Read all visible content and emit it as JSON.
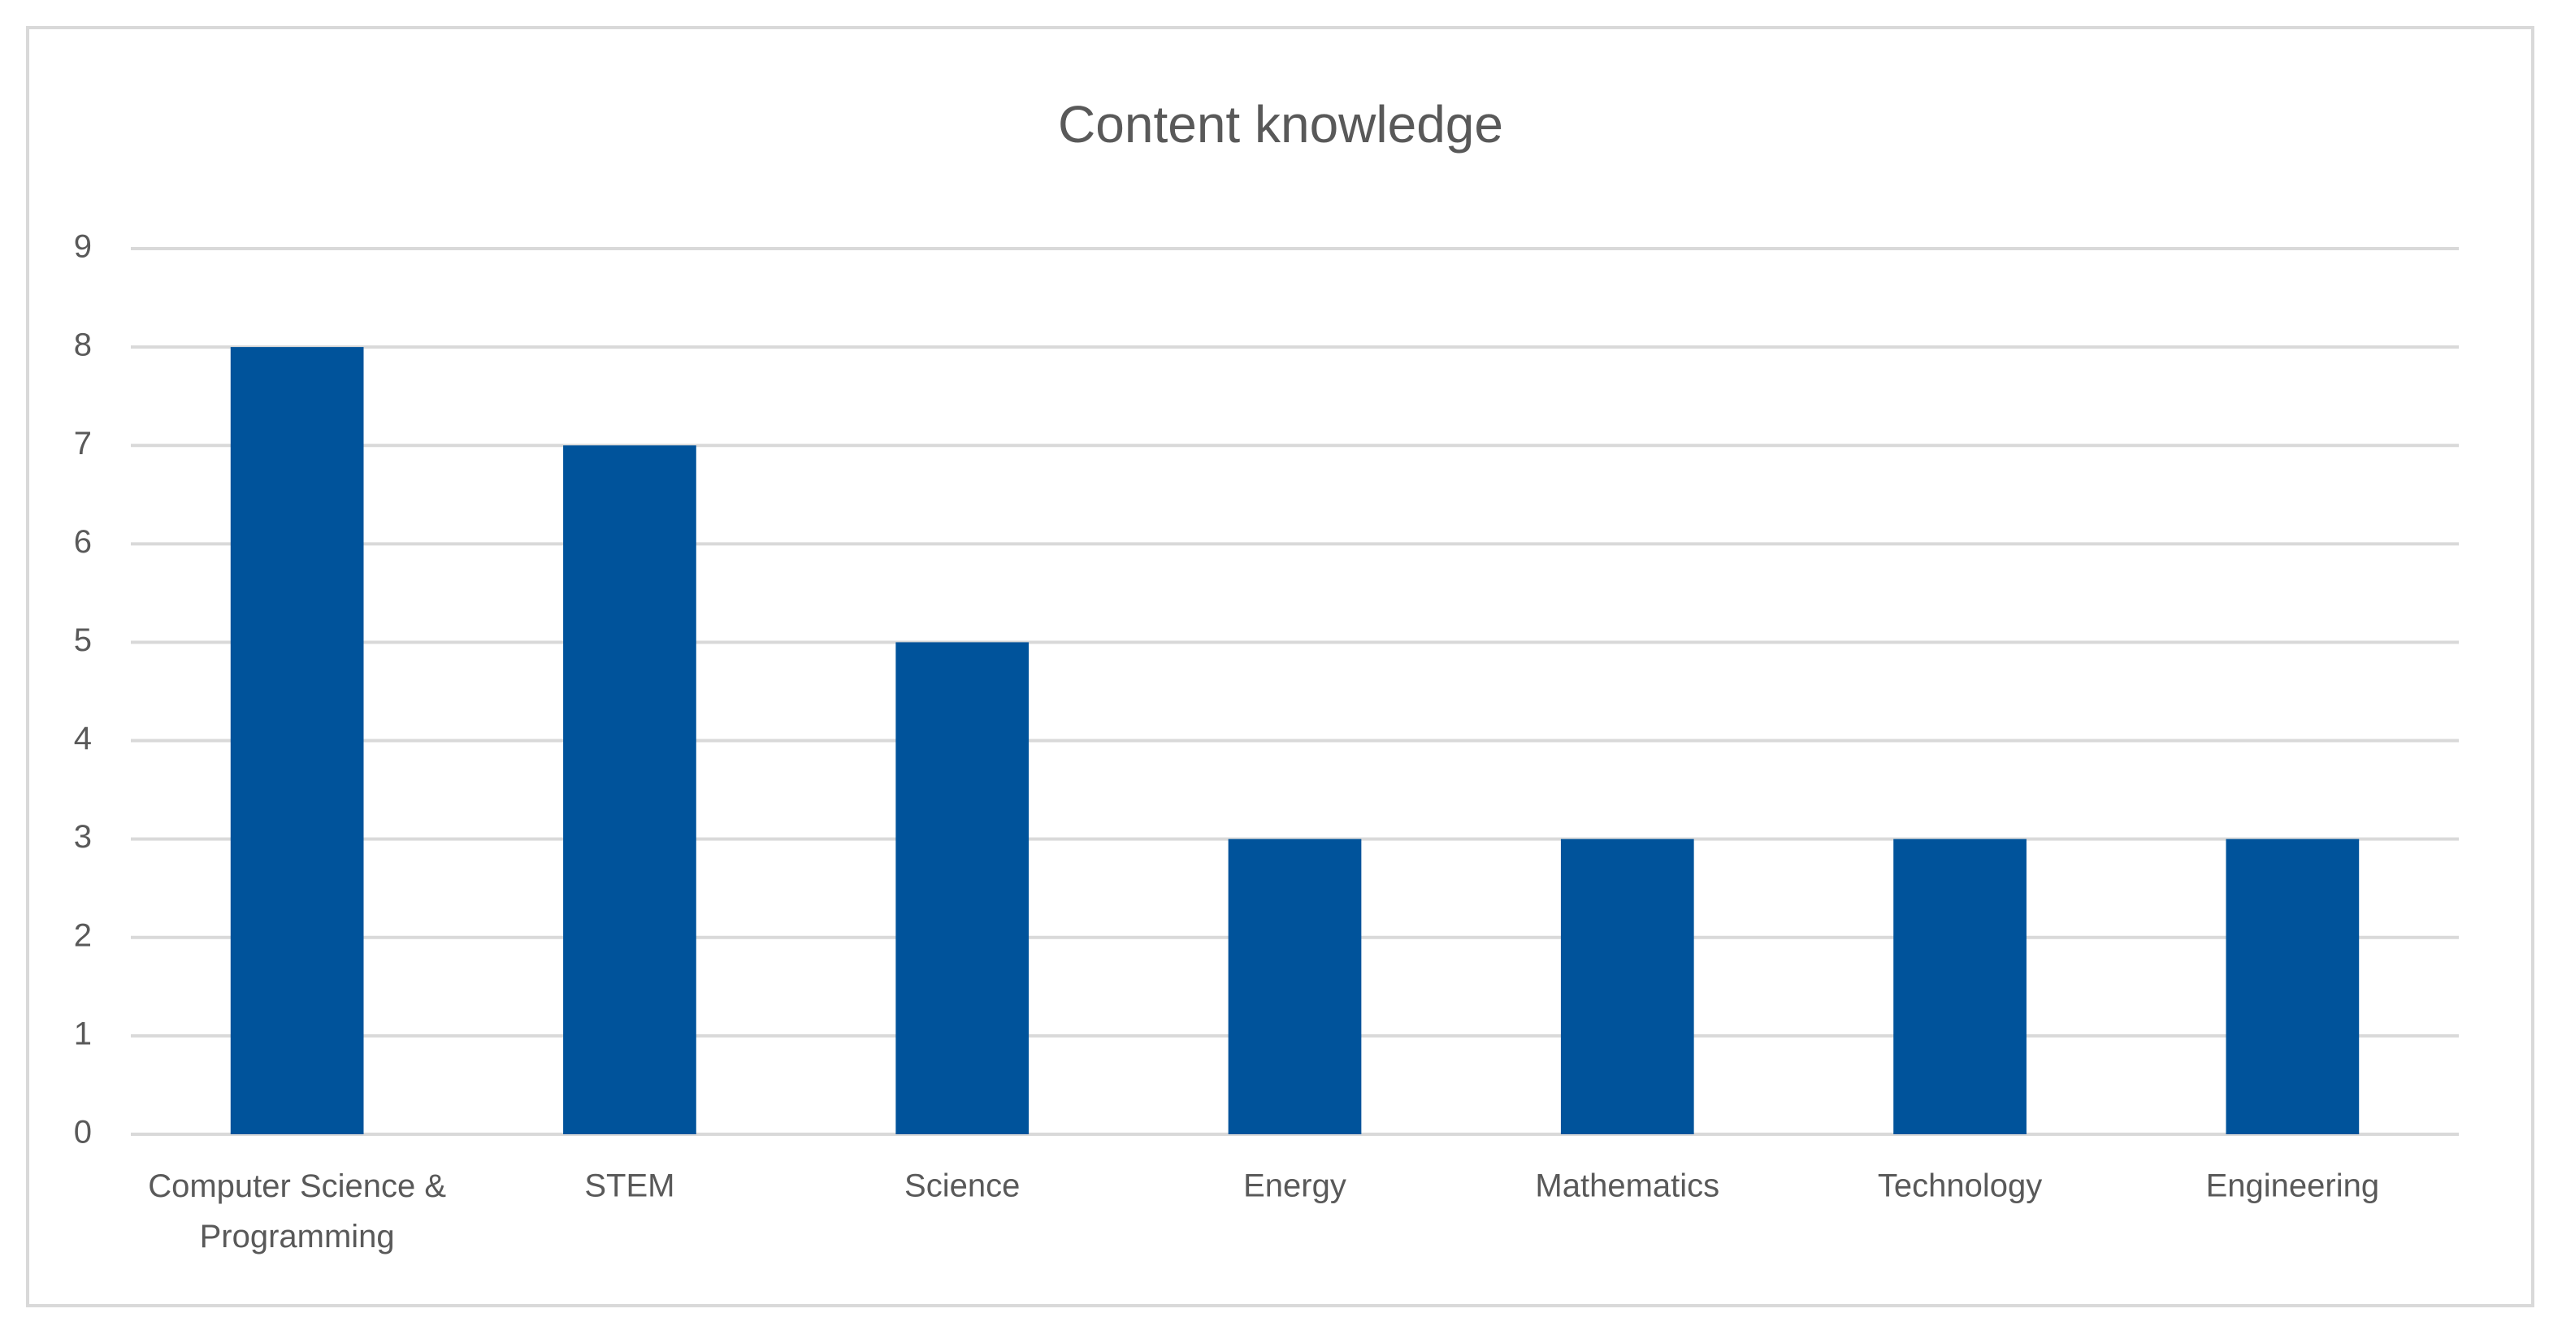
{
  "chart_data": {
    "type": "bar",
    "title": "Content knowledge",
    "categories": [
      "Computer Science & Programming",
      "STEM",
      "Science",
      "Energy",
      "Mathematics",
      "Technology",
      "Engineering"
    ],
    "values": [
      8,
      7,
      5,
      3,
      3,
      3,
      3
    ],
    "color": "#00539b",
    "ylim": [
      0,
      9
    ],
    "yticks": [
      0,
      1,
      2,
      3,
      4,
      5,
      6,
      7,
      8,
      9
    ],
    "grid": true
  }
}
